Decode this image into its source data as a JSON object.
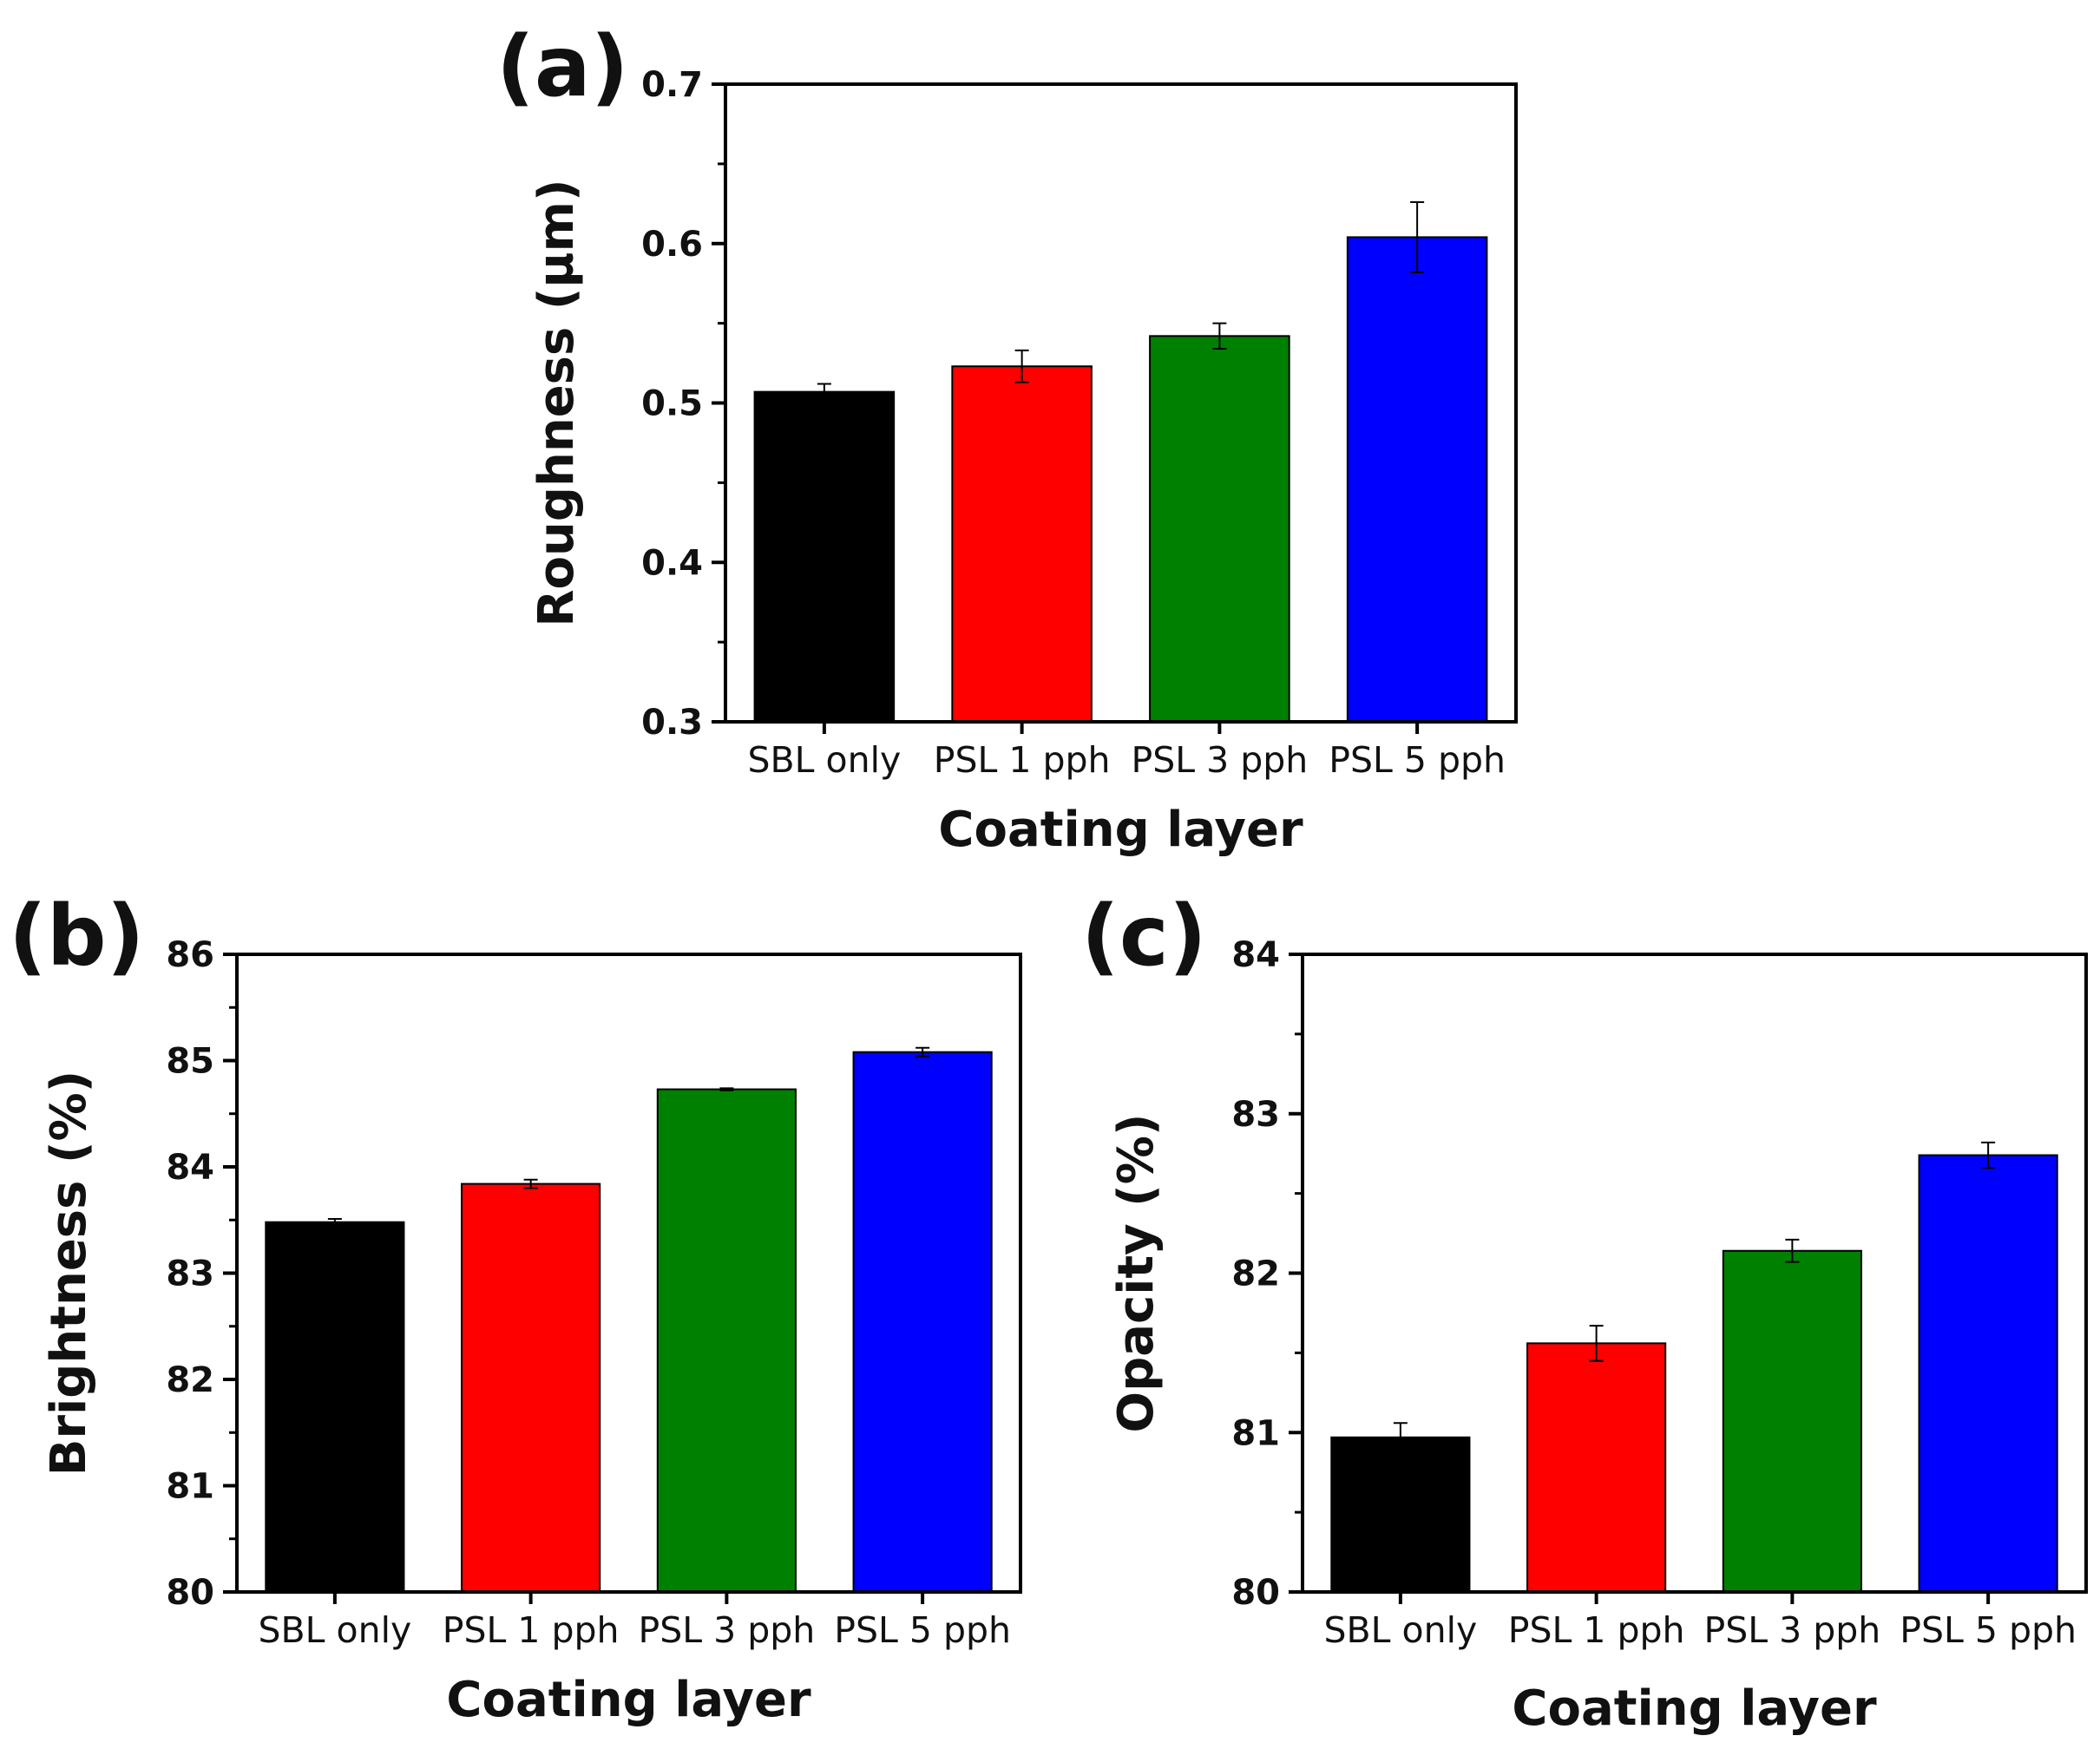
{
  "figure_title": "",
  "chart_data": [
    {
      "panel": "(a)",
      "type": "bar",
      "categories": [
        "SBL only",
        "PSL 1 pph",
        "PSL 3 pph",
        "PSL 5 pph"
      ],
      "values": [
        0.507,
        0.523,
        0.542,
        0.604
      ],
      "errors": [
        0.005,
        0.01,
        0.008,
        0.022
      ],
      "colors": [
        "#000000",
        "#ff0000",
        "#008000",
        "#0000ff"
      ],
      "xlabel": "Coating layer",
      "ylabel": "Roughness (µm)",
      "ylim": [
        0.3,
        0.7
      ],
      "yticks": [
        0.3,
        0.4,
        0.5,
        0.6,
        0.7
      ],
      "ytick_labels": [
        "0.3",
        "0.4",
        "0.5",
        "0.6",
        "0.7"
      ]
    },
    {
      "panel": "(b)",
      "type": "bar",
      "categories": [
        "SBL only",
        "PSL 1 pph",
        "PSL 3 pph",
        "PSL 5 pph"
      ],
      "values": [
        83.48,
        83.84,
        84.73,
        85.08
      ],
      "errors": [
        0.03,
        0.04,
        0.01,
        0.04
      ],
      "colors": [
        "#000000",
        "#ff0000",
        "#008000",
        "#0000ff"
      ],
      "xlabel": "Coating layer",
      "ylabel": "Brightness (%)",
      "ylim": [
        80,
        86
      ],
      "yticks": [
        80,
        81,
        82,
        83,
        84,
        85,
        86
      ],
      "ytick_labels": [
        "80",
        "81",
        "82",
        "83",
        "84",
        "85",
        "86"
      ]
    },
    {
      "panel": "(c)",
      "type": "bar",
      "categories": [
        "SBL only",
        "PSL 1 pph",
        "PSL 3 pph",
        "PSL 5 pph"
      ],
      "values": [
        80.97,
        81.56,
        82.14,
        82.74
      ],
      "errors": [
        0.09,
        0.11,
        0.07,
        0.08
      ],
      "colors": [
        "#000000",
        "#ff0000",
        "#008000",
        "#0000ff"
      ],
      "xlabel": "Coating layer",
      "ylabel": "Opacity (%)",
      "ylim": [
        80,
        84
      ],
      "yticks": [
        80,
        81,
        82,
        83,
        84
      ],
      "ytick_labels": [
        "80",
        "81",
        "82",
        "83",
        "84"
      ]
    }
  ]
}
